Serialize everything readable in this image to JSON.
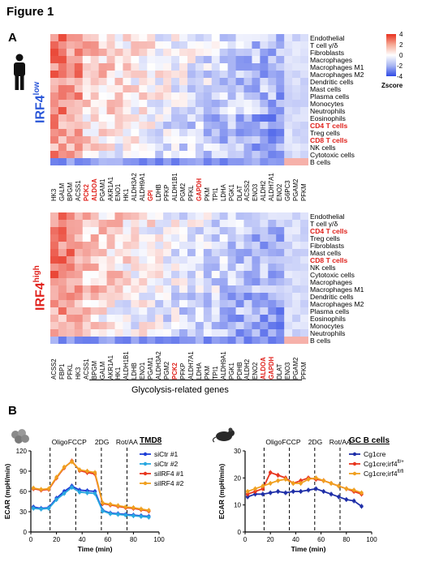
{
  "figure": {
    "title": "Figure 1",
    "panel_a": "A",
    "panel_b": "B"
  },
  "heatmap_legend": {
    "title": "Zscore",
    "ticks": [
      "4",
      "2",
      "0",
      "-2",
      "-4"
    ]
  },
  "heatmap_top": {
    "group": "IRF4",
    "group_sup": "low",
    "group_color": "#2b57d8",
    "genes": [
      "HK3",
      "GALM",
      "BPGM",
      "ACSS1",
      "PCK2",
      "ALDOA",
      "PGAM1",
      "AKR1A1",
      "ENO1",
      "HK1",
      "ALDH3A2",
      "ALDH9A1",
      "GPI",
      "LDHB",
      "PFKP",
      "ALDH1B1",
      "PGM2",
      "PFKL",
      "GAPDH",
      "PKM",
      "TPI1",
      "LDHA",
      "PGK1",
      "DLAT",
      "ACSS2",
      "ENO3",
      "ALDH2",
      "ALDH7A1",
      "ENO2",
      "G6PC3",
      "PGAM2",
      "PFKM"
    ],
    "red_genes": [
      "PCK2",
      "ALDOA",
      "GPI",
      "GAPDH"
    ],
    "cell_types": [
      "Endothelial",
      "T cell γ/δ",
      "Fibroblasts",
      "Macrophages",
      "Macrophages M1",
      "Macrophages M2",
      "Dendritic cells",
      "Mast cells",
      "Plasma cells",
      "Monocytes",
      "Neutrophils",
      "Eosinophils",
      "CD4 T cells",
      "Treg cells",
      "CD8 T cells",
      "NK cells",
      "Cytotoxic cells",
      "B cells"
    ],
    "red_cells": [
      "CD4 T cells",
      "CD8 T cells"
    ]
  },
  "heatmap_bottom": {
    "group": "IRF4",
    "group_sup": "high",
    "group_color": "#e0221c",
    "genes": [
      "ACSS2",
      "FBP1",
      "PFKL",
      "HK3",
      "ACSS1",
      "BPGM",
      "GALM",
      "AKR1A1",
      "HK1",
      "ALDH1B1",
      "LDHB",
      "ENO1",
      "PGAM1",
      "ALDH3A2",
      "PGM2",
      "PCK2",
      "PFKP",
      "ALDH7A1",
      "LDHA",
      "PKM",
      "TPI1",
      "ALDH9A1",
      "PGK1",
      "PDHB",
      "ALDH2",
      "ENO2",
      "ALDOA",
      "GAPDH",
      "DLAT",
      "ENO3",
      "PGAM2",
      "PFKM"
    ],
    "red_genes": [
      "PCK2",
      "ALDOA",
      "GAPDH"
    ],
    "cell_types": [
      "Endothelial",
      "T cell γ/δ",
      "CD4 T cells",
      "Treg cells",
      "Fibroblasts",
      "Mast cells",
      "CD8 T cells",
      "NK cells",
      "Cytotoxic cells",
      "Macrophages",
      "Macrophages M1",
      "Dendritic cells",
      "Macrophages M2",
      "Plasma cells",
      "Eosinophils",
      "Monocytes",
      "Neutrophils",
      "B cells"
    ],
    "red_cells": [
      "CD4 T cells",
      "CD8 T cells"
    ]
  },
  "x_group_label": "Glycolysis-related genes",
  "chart_data": [
    {
      "type": "line",
      "title": "TMD8",
      "xlabel": "Time (min)",
      "ylabel": "ECAR (mpH/min)",
      "xlim": [
        0,
        100
      ],
      "ylim": [
        0,
        120
      ],
      "xticks": [
        0,
        20,
        40,
        60,
        80,
        100
      ],
      "yticks": [
        0,
        30,
        60,
        90,
        120
      ],
      "annotations": [
        "Oligo",
        "FCCP",
        "2DG",
        "Rot/AA"
      ],
      "injection_lines": [
        15,
        35,
        55,
        75
      ],
      "x": [
        2,
        8,
        14,
        20,
        26,
        32,
        38,
        44,
        50,
        56,
        62,
        68,
        74,
        80,
        86,
        92
      ],
      "series": [
        {
          "name": "siCtr #1",
          "color": "#1f3fd6",
          "values": [
            37,
            35,
            36,
            50,
            60,
            68,
            62,
            61,
            60,
            32,
            28,
            27,
            26,
            25,
            24,
            23
          ]
        },
        {
          "name": "siCtr #2",
          "color": "#29a8e0",
          "values": [
            35,
            34,
            35,
            48,
            57,
            66,
            59,
            58,
            57,
            31,
            27,
            26,
            25,
            24,
            23,
            22
          ]
        },
        {
          "name": "siIRF4 #1",
          "color": "#e8361f",
          "values": [
            64,
            62,
            63,
            80,
            95,
            105,
            91,
            88,
            86,
            42,
            40,
            38,
            36,
            35,
            33,
            31
          ]
        },
        {
          "name": "siIRF4 #2",
          "color": "#f0a020",
          "values": [
            65,
            63,
            64,
            81,
            96,
            104,
            92,
            90,
            88,
            43,
            41,
            39,
            37,
            36,
            34,
            32
          ]
        }
      ],
      "legend_position": "right"
    },
    {
      "type": "line",
      "title": "GC B cells",
      "xlabel": "Time (min)",
      "ylabel": "ECAR (mpH/min)",
      "xlim": [
        0,
        100
      ],
      "ylim": [
        0,
        30
      ],
      "xticks": [
        0,
        20,
        40,
        60,
        80,
        100
      ],
      "yticks": [
        0,
        10,
        20,
        30
      ],
      "annotations": [
        "Oligo",
        "FCCP",
        "2DG",
        "Rot/AA"
      ],
      "injection_lines": [
        15,
        35,
        55,
        75
      ],
      "x": [
        2,
        8,
        14,
        20,
        26,
        32,
        38,
        44,
        50,
        56,
        62,
        68,
        74,
        80,
        86,
        92
      ],
      "series": [
        {
          "name": "Cg1cre",
          "color": "#1f2fa8",
          "values": [
            13,
            14,
            14,
            14.5,
            15,
            14.5,
            15,
            15,
            15.5,
            16,
            15,
            14,
            13,
            12,
            11.5,
            9.5
          ]
        },
        {
          "name": "Cg1cre;irf4",
          "name_sup": "fl/+",
          "color": "#e8361f",
          "values": [
            14,
            15,
            16,
            22,
            21,
            20,
            18,
            19,
            20,
            19.5,
            19,
            18,
            17,
            16,
            15,
            14
          ]
        },
        {
          "name": "Cg1cre;irf4",
          "name_sup": "fl/fl",
          "color": "#f0a020",
          "values": [
            15,
            16,
            17,
            18,
            19,
            19.5,
            18,
            18,
            19.5,
            20,
            19,
            18,
            17,
            16,
            15.5,
            14.5
          ]
        }
      ],
      "legend_position": "right"
    }
  ]
}
